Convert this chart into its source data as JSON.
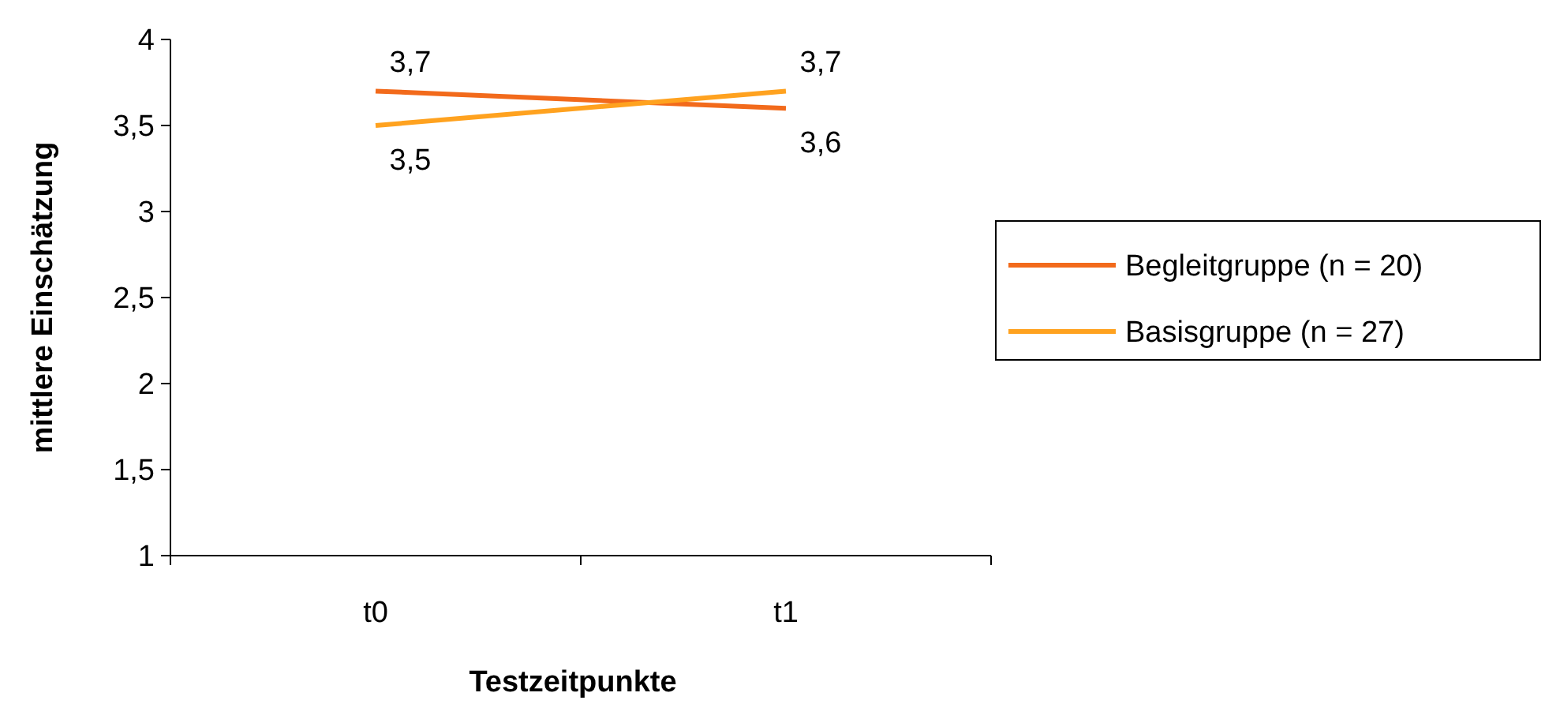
{
  "chart_data": {
    "type": "line",
    "xlabel": "Testzeitpunkte",
    "ylabel": "mittlere Einschätzung",
    "categories": [
      "t0",
      "t1"
    ],
    "series": [
      {
        "name": "Begleitgruppe (n  = 20)",
        "color": "#f26a1b",
        "values": [
          3.7,
          3.6
        ],
        "value_labels": [
          "3,7",
          "3,6"
        ]
      },
      {
        "name": "Basisgruppe (n = 27)",
        "color": "#ffa21f",
        "values": [
          3.5,
          3.7
        ],
        "value_labels": [
          "3,5",
          "3,7"
        ]
      }
    ],
    "ylim": [
      1,
      4
    ],
    "yticks": [
      1,
      {
        "value": 1.5,
        "label": "1,5"
      },
      2,
      {
        "value": 2.5,
        "label": "2,5"
      },
      3,
      {
        "value": 3.5,
        "label": "3,5"
      },
      4
    ],
    "grid": false,
    "legend": "right",
    "marker": "none",
    "line_style": "solid"
  }
}
